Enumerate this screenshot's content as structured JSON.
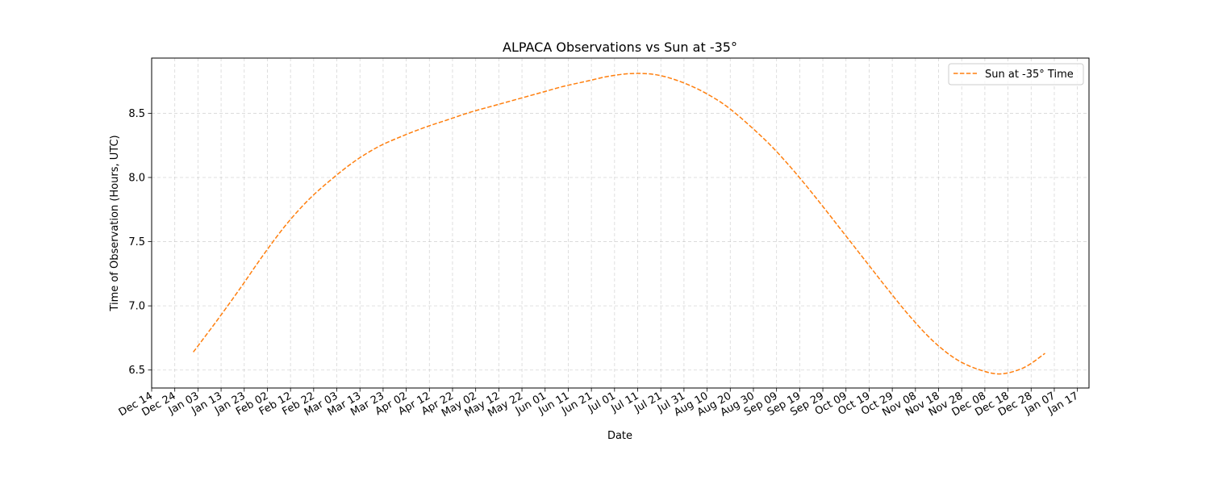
{
  "chart_data": {
    "type": "line",
    "title": "ALPACA Observations vs Sun at -35°",
    "xlabel": "Date",
    "ylabel": "Time of Observation (Hours, UTC)",
    "xlim": [
      "2023-12-14",
      "2025-01-22"
    ],
    "ylim": [
      6.36,
      8.93
    ],
    "grid": true,
    "legend": {
      "position": "top-right"
    },
    "x_ticks": [
      "Dec 14",
      "Dec 24",
      "Jan 03",
      "Jan 13",
      "Jan 23",
      "Feb 02",
      "Feb 12",
      "Feb 22",
      "Mar 03",
      "Mar 13",
      "Mar 23",
      "Apr 02",
      "Apr 12",
      "Apr 22",
      "May 02",
      "May 12",
      "May 22",
      "Jun 01",
      "Jun 11",
      "Jun 21",
      "Jul 01",
      "Jul 11",
      "Jul 21",
      "Jul 31",
      "Aug 10",
      "Aug 20",
      "Aug 30",
      "Sep 09",
      "Sep 19",
      "Sep 29",
      "Oct 09",
      "Oct 19",
      "Oct 29",
      "Nov 08",
      "Nov 18",
      "Nov 28",
      "Dec 08",
      "Dec 18",
      "Dec 28",
      "Jan 07",
      "Jan 17"
    ],
    "x_tick_dates": [
      "2023-12-14",
      "2023-12-24",
      "2024-01-03",
      "2024-01-13",
      "2024-01-23",
      "2024-02-02",
      "2024-02-12",
      "2024-02-22",
      "2024-03-03",
      "2024-03-13",
      "2024-03-23",
      "2024-04-02",
      "2024-04-12",
      "2024-04-22",
      "2024-05-02",
      "2024-05-12",
      "2024-05-22",
      "2024-06-01",
      "2024-06-11",
      "2024-06-21",
      "2024-07-01",
      "2024-07-11",
      "2024-07-21",
      "2024-07-31",
      "2024-08-10",
      "2024-08-20",
      "2024-08-30",
      "2024-09-09",
      "2024-09-19",
      "2024-09-29",
      "2024-10-09",
      "2024-10-19",
      "2024-10-29",
      "2024-11-08",
      "2024-11-18",
      "2024-11-28",
      "2024-12-08",
      "2024-12-18",
      "2024-12-28",
      "2025-01-07",
      "2025-01-17"
    ],
    "y_ticks": [
      6.5,
      7.0,
      7.5,
      8.0,
      8.5
    ],
    "y_tick_labels": [
      "6.5",
      "7.0",
      "7.5",
      "8.0",
      "8.5"
    ],
    "series": [
      {
        "name": "Sun at -35° Time",
        "color": "#ff7f0e",
        "style": "dashed",
        "points": [
          {
            "x": "2024-01-01",
            "y": 6.64
          },
          {
            "x": "2024-01-11",
            "y": 6.88
          },
          {
            "x": "2024-01-21",
            "y": 7.13
          },
          {
            "x": "2024-01-31",
            "y": 7.39
          },
          {
            "x": "2024-02-10",
            "y": 7.63
          },
          {
            "x": "2024-02-20",
            "y": 7.83
          },
          {
            "x": "2024-03-01",
            "y": 7.99
          },
          {
            "x": "2024-03-11",
            "y": 8.13
          },
          {
            "x": "2024-03-21",
            "y": 8.24
          },
          {
            "x": "2024-03-31",
            "y": 8.32
          },
          {
            "x": "2024-04-10",
            "y": 8.39
          },
          {
            "x": "2024-04-20",
            "y": 8.45
          },
          {
            "x": "2024-04-30",
            "y": 8.51
          },
          {
            "x": "2024-05-10",
            "y": 8.56
          },
          {
            "x": "2024-05-20",
            "y": 8.61
          },
          {
            "x": "2024-05-30",
            "y": 8.66
          },
          {
            "x": "2024-06-09",
            "y": 8.71
          },
          {
            "x": "2024-06-19",
            "y": 8.75
          },
          {
            "x": "2024-06-29",
            "y": 8.79
          },
          {
            "x": "2024-07-09",
            "y": 8.81
          },
          {
            "x": "2024-07-19",
            "y": 8.8
          },
          {
            "x": "2024-07-29",
            "y": 8.75
          },
          {
            "x": "2024-08-08",
            "y": 8.67
          },
          {
            "x": "2024-08-18",
            "y": 8.56
          },
          {
            "x": "2024-08-28",
            "y": 8.41
          },
          {
            "x": "2024-09-07",
            "y": 8.24
          },
          {
            "x": "2024-09-17",
            "y": 8.04
          },
          {
            "x": "2024-09-27",
            "y": 7.82
          },
          {
            "x": "2024-10-07",
            "y": 7.59
          },
          {
            "x": "2024-10-17",
            "y": 7.36
          },
          {
            "x": "2024-10-27",
            "y": 7.13
          },
          {
            "x": "2024-11-06",
            "y": 6.91
          },
          {
            "x": "2024-11-16",
            "y": 6.72
          },
          {
            "x": "2024-11-26",
            "y": 6.58
          },
          {
            "x": "2024-12-06",
            "y": 6.5
          },
          {
            "x": "2024-12-15",
            "y": 6.47
          },
          {
            "x": "2024-12-25",
            "y": 6.52
          },
          {
            "x": "2025-01-03",
            "y": 6.63
          }
        ]
      }
    ]
  }
}
